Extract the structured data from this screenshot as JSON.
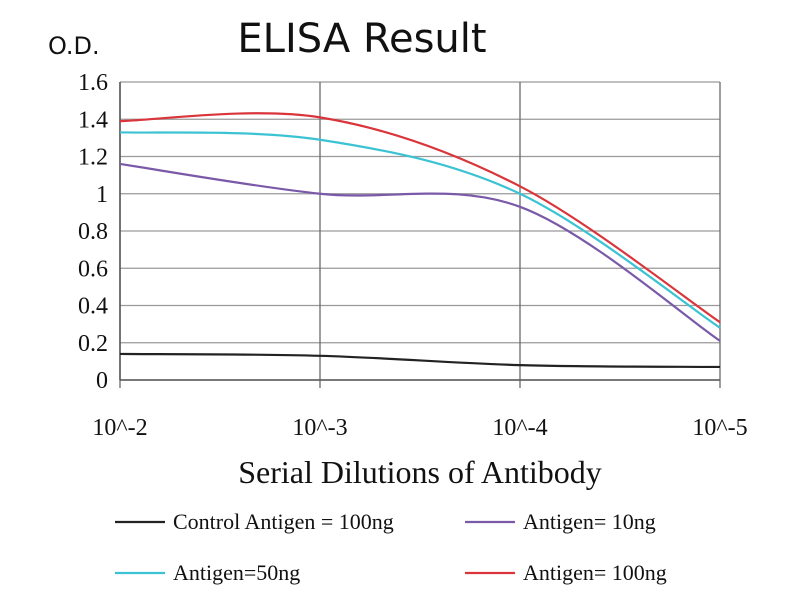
{
  "chart_data": {
    "type": "line",
    "title": "ELISA Result",
    "ylabel": "O.D.",
    "xlabel": "Serial Dilutions of Antibody",
    "x": [
      "10^-2",
      "10^-3",
      "10^-4",
      "10^-5"
    ],
    "ylim": [
      0,
      1.6
    ],
    "yticks": [
      "0",
      "0.2",
      "0.4",
      "0.6",
      "0.8",
      "1",
      "1.2",
      "1.4",
      "1.6"
    ],
    "grid": true,
    "legend_position": "bottom",
    "series": [
      {
        "name": "Control Antigen = 100ng",
        "color": "#222222",
        "values": [
          0.14,
          0.13,
          0.08,
          0.07
        ]
      },
      {
        "name": "Antigen= 10ng",
        "color": "#7a5aa8",
        "values": [
          1.16,
          1.0,
          0.93,
          0.21
        ]
      },
      {
        "name": "Antigen=50ng",
        "color": "#3cc3d3",
        "values": [
          1.33,
          1.29,
          1.0,
          0.28
        ]
      },
      {
        "name": "Antigen= 100ng",
        "color": "#d9353a",
        "values": [
          1.39,
          1.41,
          1.04,
          0.31
        ]
      }
    ]
  }
}
